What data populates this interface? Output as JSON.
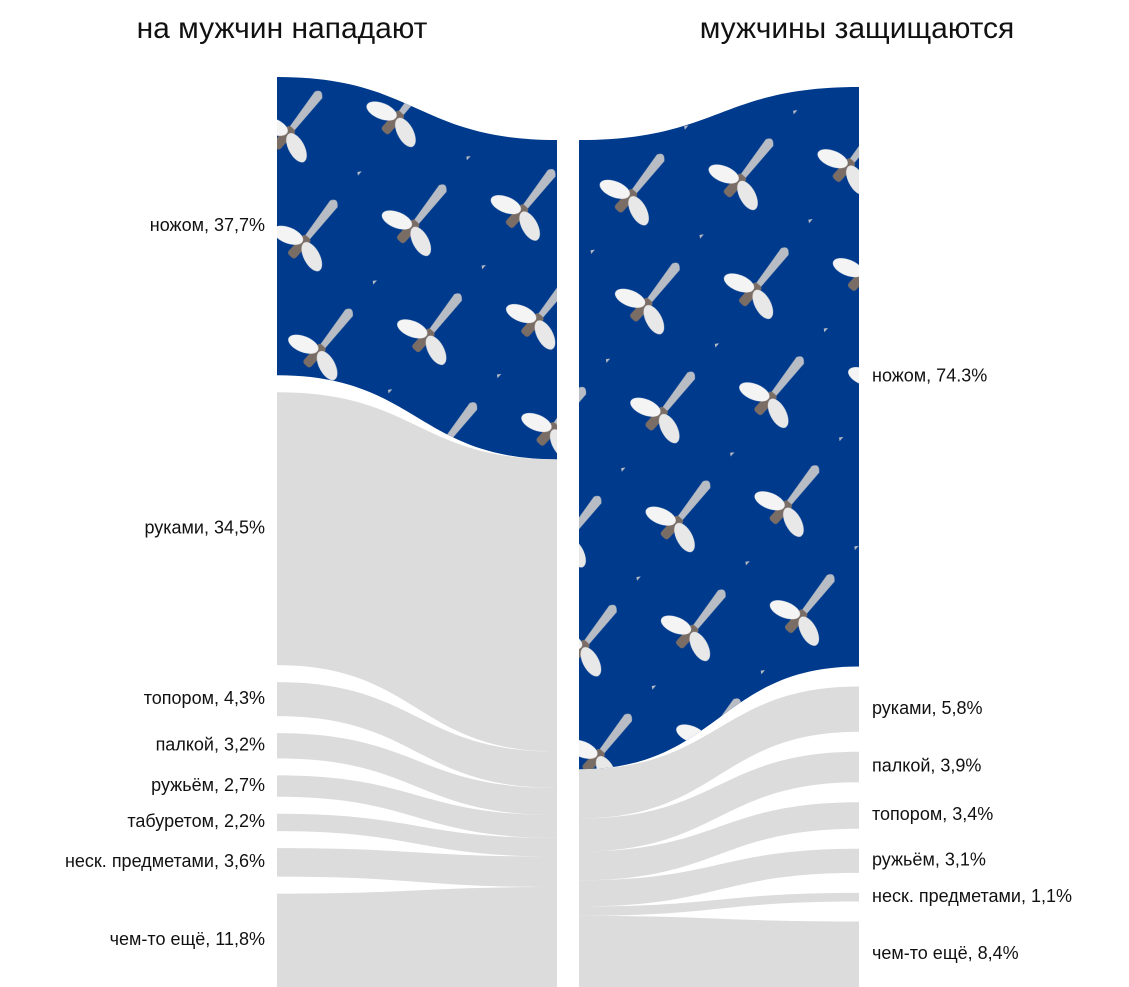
{
  "chart_data": [
    {
      "type": "sankey",
      "title": "на мужчин нападают",
      "values": [
        37.7,
        34.5,
        4.3,
        3.2,
        2.7,
        2.2,
        3.6,
        11.8
      ],
      "value_labels": [
        "ножом, 37,7%",
        "руками, 34,5%",
        "топором, 4,3%",
        "палкой, 3,2%",
        "ружьём, 2,7%",
        "табуретом, 2,2%",
        "неск. предметами, 3,6%",
        "чем-то ещё, 11,8%"
      ],
      "colors": [
        "#003a8c",
        "#dcdcdc",
        "#dcdcdc",
        "#dcdcdc",
        "#dcdcdc",
        "#dcdcdc",
        "#dcdcdc",
        "#dcdcdc"
      ]
    },
    {
      "type": "sankey",
      "title": "мужчины защищаются",
      "values": [
        74.3,
        5.8,
        3.9,
        3.4,
        3.1,
        1.1,
        8.4
      ],
      "value_labels": [
        "ножом, 74.3%",
        "руками, 5,8%",
        "палкой, 3,9%",
        "топором, 3,4%",
        "ружьём, 3,1%",
        "неск. предметами, 1,1%",
        "чем-то ещё, 8,4%"
      ],
      "colors": [
        "#003a8c",
        "#dcdcdc",
        "#dcdcdc",
        "#dcdcdc",
        "#dcdcdc",
        "#dcdcdc",
        "#dcdcdc"
      ]
    }
  ]
}
